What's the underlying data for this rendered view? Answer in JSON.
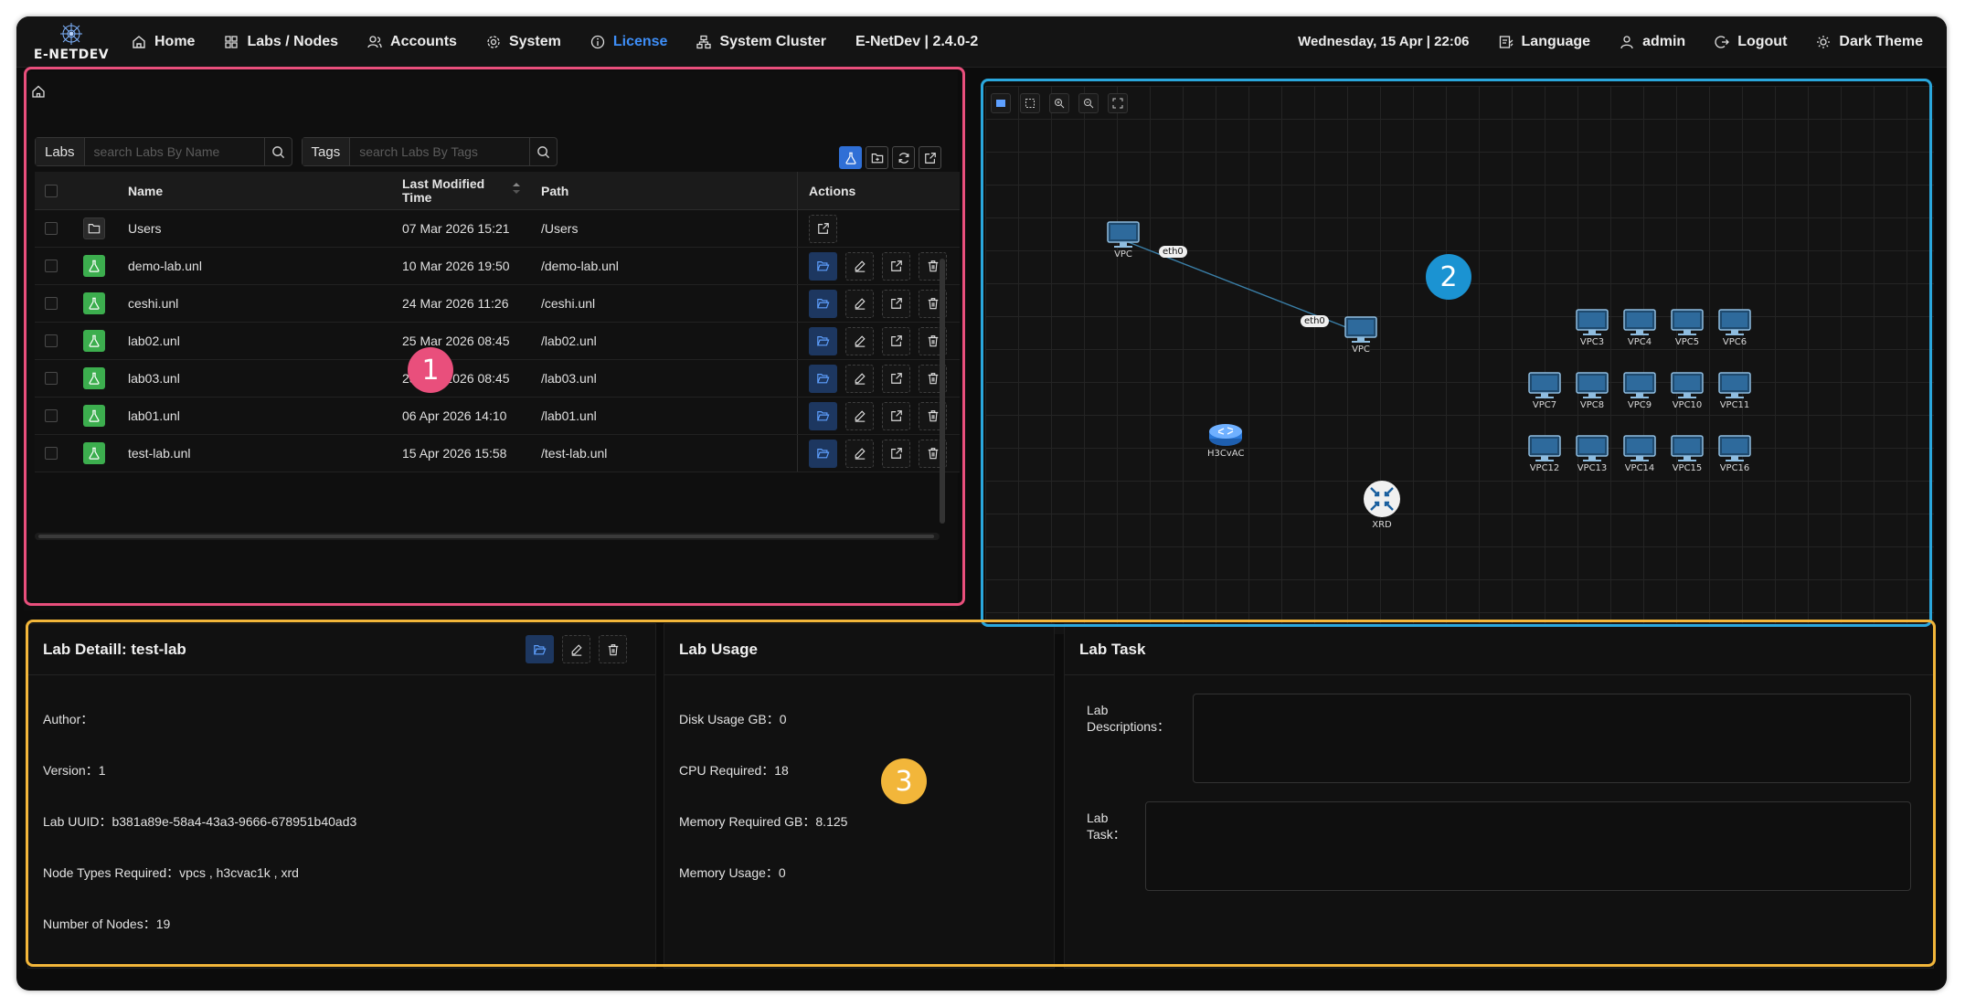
{
  "app": {
    "logo_text": "E-NETDEV"
  },
  "nav": {
    "items": [
      {
        "label": "Home",
        "icon": "home-icon"
      },
      {
        "label": "Labs / Nodes",
        "icon": "grid-icon"
      },
      {
        "label": "Accounts",
        "icon": "users-icon"
      },
      {
        "label": "System",
        "icon": "gear-icon"
      },
      {
        "label": "License",
        "icon": "info-icon"
      },
      {
        "label": "System Cluster",
        "icon": "cluster-icon"
      }
    ],
    "version": "E-NetDev | 2.4.0-2",
    "datetime": "Wednesday, 15 Apr | 22:06",
    "language": "Language",
    "user": "admin",
    "logout": "Logout",
    "theme": "Dark Theme",
    "accent": "#3e8ef7"
  },
  "labs": {
    "labs_label": "Labs",
    "labs_placeholder": "search Labs By Name",
    "tags_label": "Tags",
    "tags_placeholder": "search Labs By Tags",
    "columns": {
      "name": "Name",
      "time": "Last Modified Time",
      "path": "Path",
      "actions": "Actions"
    },
    "rows": [
      {
        "name": "Users",
        "time": "07 Mar 2026 15:21",
        "path": "/Users",
        "type": "folder"
      },
      {
        "name": "demo-lab.unl",
        "time": "10 Mar 2026 19:50",
        "path": "/demo-lab.unl",
        "type": "lab"
      },
      {
        "name": "ceshi.unl",
        "time": "24 Mar 2026 11:26",
        "path": "/ceshi.unl",
        "type": "lab"
      },
      {
        "name": "lab02.unl",
        "time": "25 Mar 2026 08:45",
        "path": "/lab02.unl",
        "type": "lab"
      },
      {
        "name": "lab03.unl",
        "time": "25 Mar 2026 08:45",
        "path": "/lab03.unl",
        "type": "lab"
      },
      {
        "name": "lab01.unl",
        "time": "06 Apr 2026 14:10",
        "path": "/lab01.unl",
        "type": "lab"
      },
      {
        "name": "test-lab.unl",
        "time": "15 Apr 2026 15:58",
        "path": "/test-lab.unl",
        "type": "lab"
      }
    ]
  },
  "topology": {
    "nodes": {
      "vpc_a": "VPC",
      "vpc_b": "VPC",
      "h3c": "H3CvAC",
      "xrd": "XRD",
      "vpc3": "VPC3",
      "vpc4": "VPC4",
      "vpc5": "VPC5",
      "vpc6": "VPC6",
      "vpc7": "VPC7",
      "vpc8": "VPC8",
      "vpc9": "VPC9",
      "vpc10": "VPC10",
      "vpc11": "VPC11",
      "vpc12": "VPC12",
      "vpc13": "VPC13",
      "vpc14": "VPC14",
      "vpc15": "VPC15",
      "vpc16": "VPC16"
    },
    "link": {
      "iface_a": "eth0",
      "iface_b": "eth0"
    }
  },
  "badges": {
    "one": "1",
    "two": "2",
    "three": "3"
  },
  "detail": {
    "title": "Lab Detaill: test-lab",
    "author_label": "Author：",
    "author": "",
    "version_label": "Version：",
    "version": "1",
    "uuid_label": "Lab UUID：",
    "uuid": "b381a89e-58a4-43a3-9666-678951b40ad3",
    "types_label": "Node Types Required：",
    "types": "vpcs , h3cvac1k , xrd",
    "nodes_label": "Number of Nodes：",
    "nodes": "19"
  },
  "usage": {
    "title": "Lab Usage",
    "disk_label": "Disk Usage GB：",
    "disk": "0",
    "cpu_label": "CPU Required：",
    "cpu": "18",
    "mem_req_label": "Memory Required GB：",
    "mem_req": "8.125",
    "mem_use_label": "Memory Usage：",
    "mem_use": "0"
  },
  "task": {
    "title": "Lab Task",
    "desc_label": "Lab Descriptions：",
    "desc": "",
    "task_label": "Lab Task：",
    "task": ""
  },
  "frame_colors": {
    "one": "#e94f7c",
    "two": "#2aa7dd",
    "three": "#f2b63a"
  }
}
